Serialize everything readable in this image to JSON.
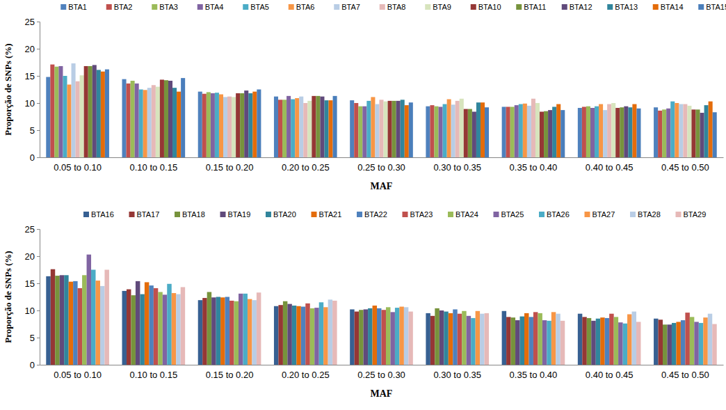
{
  "chart_data": [
    {
      "type": "bar",
      "x_label": "MAF",
      "y_label": "Proporção de SNPs (%)",
      "categories": [
        "0.05 to 0.10",
        "0.10 to 0.15",
        "0.15 to 0.20",
        "0.20 to 0.25",
        "0.25 to 0.30",
        "0.30 to 0.35",
        "0.35 to 0.40",
        "0.40 to 0.45",
        "0.45 to 0.50"
      ],
      "ylim": [
        0,
        25
      ],
      "yticks": [
        0,
        5,
        10,
        15,
        20,
        25
      ],
      "grid": false,
      "legend": "top",
      "series": [
        {
          "name": "BTA1",
          "color": "#4f81bd",
          "values": [
            14.8,
            14.4,
            12.1,
            11.2,
            10.5,
            9.4,
            9.3,
            9.1,
            9.2
          ]
        },
        {
          "name": "BTA2",
          "color": "#c0504d",
          "values": [
            17.1,
            13.6,
            11.7,
            10.6,
            10.0,
            9.6,
            9.3,
            9.3,
            8.6
          ]
        },
        {
          "name": "BTA3",
          "color": "#9bbb59",
          "values": [
            16.7,
            14.1,
            12.0,
            10.6,
            9.4,
            9.4,
            9.3,
            9.4,
            8.8
          ]
        },
        {
          "name": "BTA4",
          "color": "#8064a2",
          "values": [
            16.8,
            13.6,
            11.8,
            11.3,
            9.4,
            9.3,
            9.6,
            9.1,
            9.0
          ]
        },
        {
          "name": "BTA5",
          "color": "#4bacc6",
          "values": [
            15.0,
            12.5,
            11.9,
            10.7,
            10.4,
            9.8,
            9.8,
            9.4,
            10.3
          ]
        },
        {
          "name": "BTA6",
          "color": "#f79646",
          "values": [
            13.4,
            12.4,
            11.6,
            10.9,
            11.1,
            10.7,
            9.9,
            9.8,
            10.0
          ]
        },
        {
          "name": "BTA7",
          "color": "#b9cde5",
          "values": [
            17.3,
            12.8,
            11.1,
            11.2,
            9.8,
            9.7,
            9.5,
            8.7,
            9.8
          ]
        },
        {
          "name": "BTA8",
          "color": "#e6b9b8",
          "values": [
            14.0,
            13.3,
            11.2,
            10.0,
            10.6,
            10.4,
            10.8,
            9.8,
            9.8
          ]
        },
        {
          "name": "BTA9",
          "color": "#d7e4bd",
          "values": [
            15.1,
            13.0,
            11.1,
            10.4,
            10.3,
            10.8,
            10.0,
            10.0,
            9.5
          ]
        },
        {
          "name": "BTA10",
          "color": "#953735",
          "values": [
            16.8,
            14.3,
            11.8,
            11.3,
            10.4,
            8.9,
            8.4,
            9.1,
            8.8
          ]
        },
        {
          "name": "BTA11",
          "color": "#77933c",
          "values": [
            16.8,
            14.2,
            11.8,
            11.3,
            10.4,
            8.9,
            8.5,
            9.2,
            8.8
          ]
        },
        {
          "name": "BTA12",
          "color": "#604a7b",
          "values": [
            17.0,
            14.1,
            12.3,
            11.2,
            10.4,
            8.4,
            8.7,
            9.4,
            8.2
          ]
        },
        {
          "name": "BTA13",
          "color": "#31859c",
          "values": [
            16.1,
            12.8,
            11.8,
            10.5,
            10.6,
            10.1,
            9.3,
            9.2,
            9.6
          ]
        },
        {
          "name": "BTA14",
          "color": "#e46c0a",
          "values": [
            15.8,
            12.1,
            12.1,
            10.5,
            9.6,
            10.1,
            9.8,
            9.8,
            10.3
          ]
        },
        {
          "name": "BTA15",
          "color": "#4a7ebb",
          "values": [
            16.2,
            14.6,
            12.5,
            11.3,
            10.1,
            9.2,
            8.7,
            9.0,
            8.3
          ]
        }
      ]
    },
    {
      "type": "bar",
      "x_label": "MAF",
      "y_label": "Proporção de SNPs (%)",
      "categories": [
        "0.05 to 0.10",
        "0.10 to 0.15",
        "0.15 to 0.20",
        "0.20 to 0.25",
        "0.25 to 0.30",
        "0.30 to 0.35",
        "0.35 to 0.40",
        "0.40 to 0.45",
        "0.45 to 0.50"
      ],
      "ylim": [
        0,
        25
      ],
      "yticks": [
        0,
        5,
        10,
        15,
        20,
        25
      ],
      "grid": false,
      "legend": "top",
      "series": [
        {
          "name": "BTA16",
          "color": "#376092",
          "values": [
            16.3,
            13.6,
            11.9,
            10.8,
            10.2,
            9.5,
            9.9,
            9.4,
            8.5
          ]
        },
        {
          "name": "BTA17",
          "color": "#953735",
          "values": [
            17.6,
            13.9,
            12.3,
            11.0,
            9.8,
            9.0,
            8.8,
            8.8,
            8.3
          ]
        },
        {
          "name": "BTA18",
          "color": "#77933c",
          "values": [
            16.4,
            12.8,
            13.4,
            11.7,
            10.1,
            10.4,
            8.7,
            8.6,
            7.4
          ]
        },
        {
          "name": "BTA19",
          "color": "#604a7b",
          "values": [
            16.5,
            15.4,
            12.4,
            11.2,
            10.2,
            10.0,
            8.2,
            8.1,
            7.4
          ]
        },
        {
          "name": "BTA20",
          "color": "#31859c",
          "values": [
            16.5,
            13.0,
            12.5,
            10.9,
            10.4,
            9.8,
            8.9,
            8.5,
            7.7
          ]
        },
        {
          "name": "BTA21",
          "color": "#e46c0a",
          "values": [
            15.3,
            15.2,
            12.4,
            10.8,
            10.9,
            9.5,
            9.5,
            8.7,
            7.9
          ]
        },
        {
          "name": "BTA22",
          "color": "#4f81bd",
          "values": [
            15.4,
            14.6,
            12.5,
            10.7,
            10.4,
            10.2,
            8.8,
            8.6,
            8.2
          ]
        },
        {
          "name": "BTA23",
          "color": "#c0504d",
          "values": [
            14.1,
            14.1,
            11.8,
            11.3,
            10.1,
            9.4,
            9.7,
            9.4,
            9.6
          ]
        },
        {
          "name": "BTA24",
          "color": "#9bbb59",
          "values": [
            16.5,
            13.4,
            11.7,
            10.4,
            10.6,
            9.9,
            9.5,
            8.8,
            8.8
          ]
        },
        {
          "name": "BTA25",
          "color": "#8064a2",
          "values": [
            20.3,
            12.9,
            13.1,
            10.5,
            9.7,
            9.0,
            8.2,
            7.8,
            7.9
          ]
        },
        {
          "name": "BTA26",
          "color": "#4bacc6",
          "values": [
            17.5,
            14.9,
            13.1,
            11.5,
            10.5,
            8.6,
            8.1,
            7.6,
            7.7
          ]
        },
        {
          "name": "BTA27",
          "color": "#f79646",
          "values": [
            15.5,
            13.2,
            12.1,
            10.6,
            10.7,
            9.9,
            9.7,
            9.3,
            8.7
          ]
        },
        {
          "name": "BTA28",
          "color": "#b9cde5",
          "values": [
            14.5,
            13.0,
            11.9,
            12.0,
            10.6,
            9.4,
            9.4,
            9.8,
            9.4
          ]
        },
        {
          "name": "BTA29",
          "color": "#e6b9b8",
          "values": [
            17.5,
            14.3,
            13.3,
            11.8,
            9.8,
            9.5,
            8.1,
            7.9,
            7.5
          ]
        }
      ]
    }
  ]
}
